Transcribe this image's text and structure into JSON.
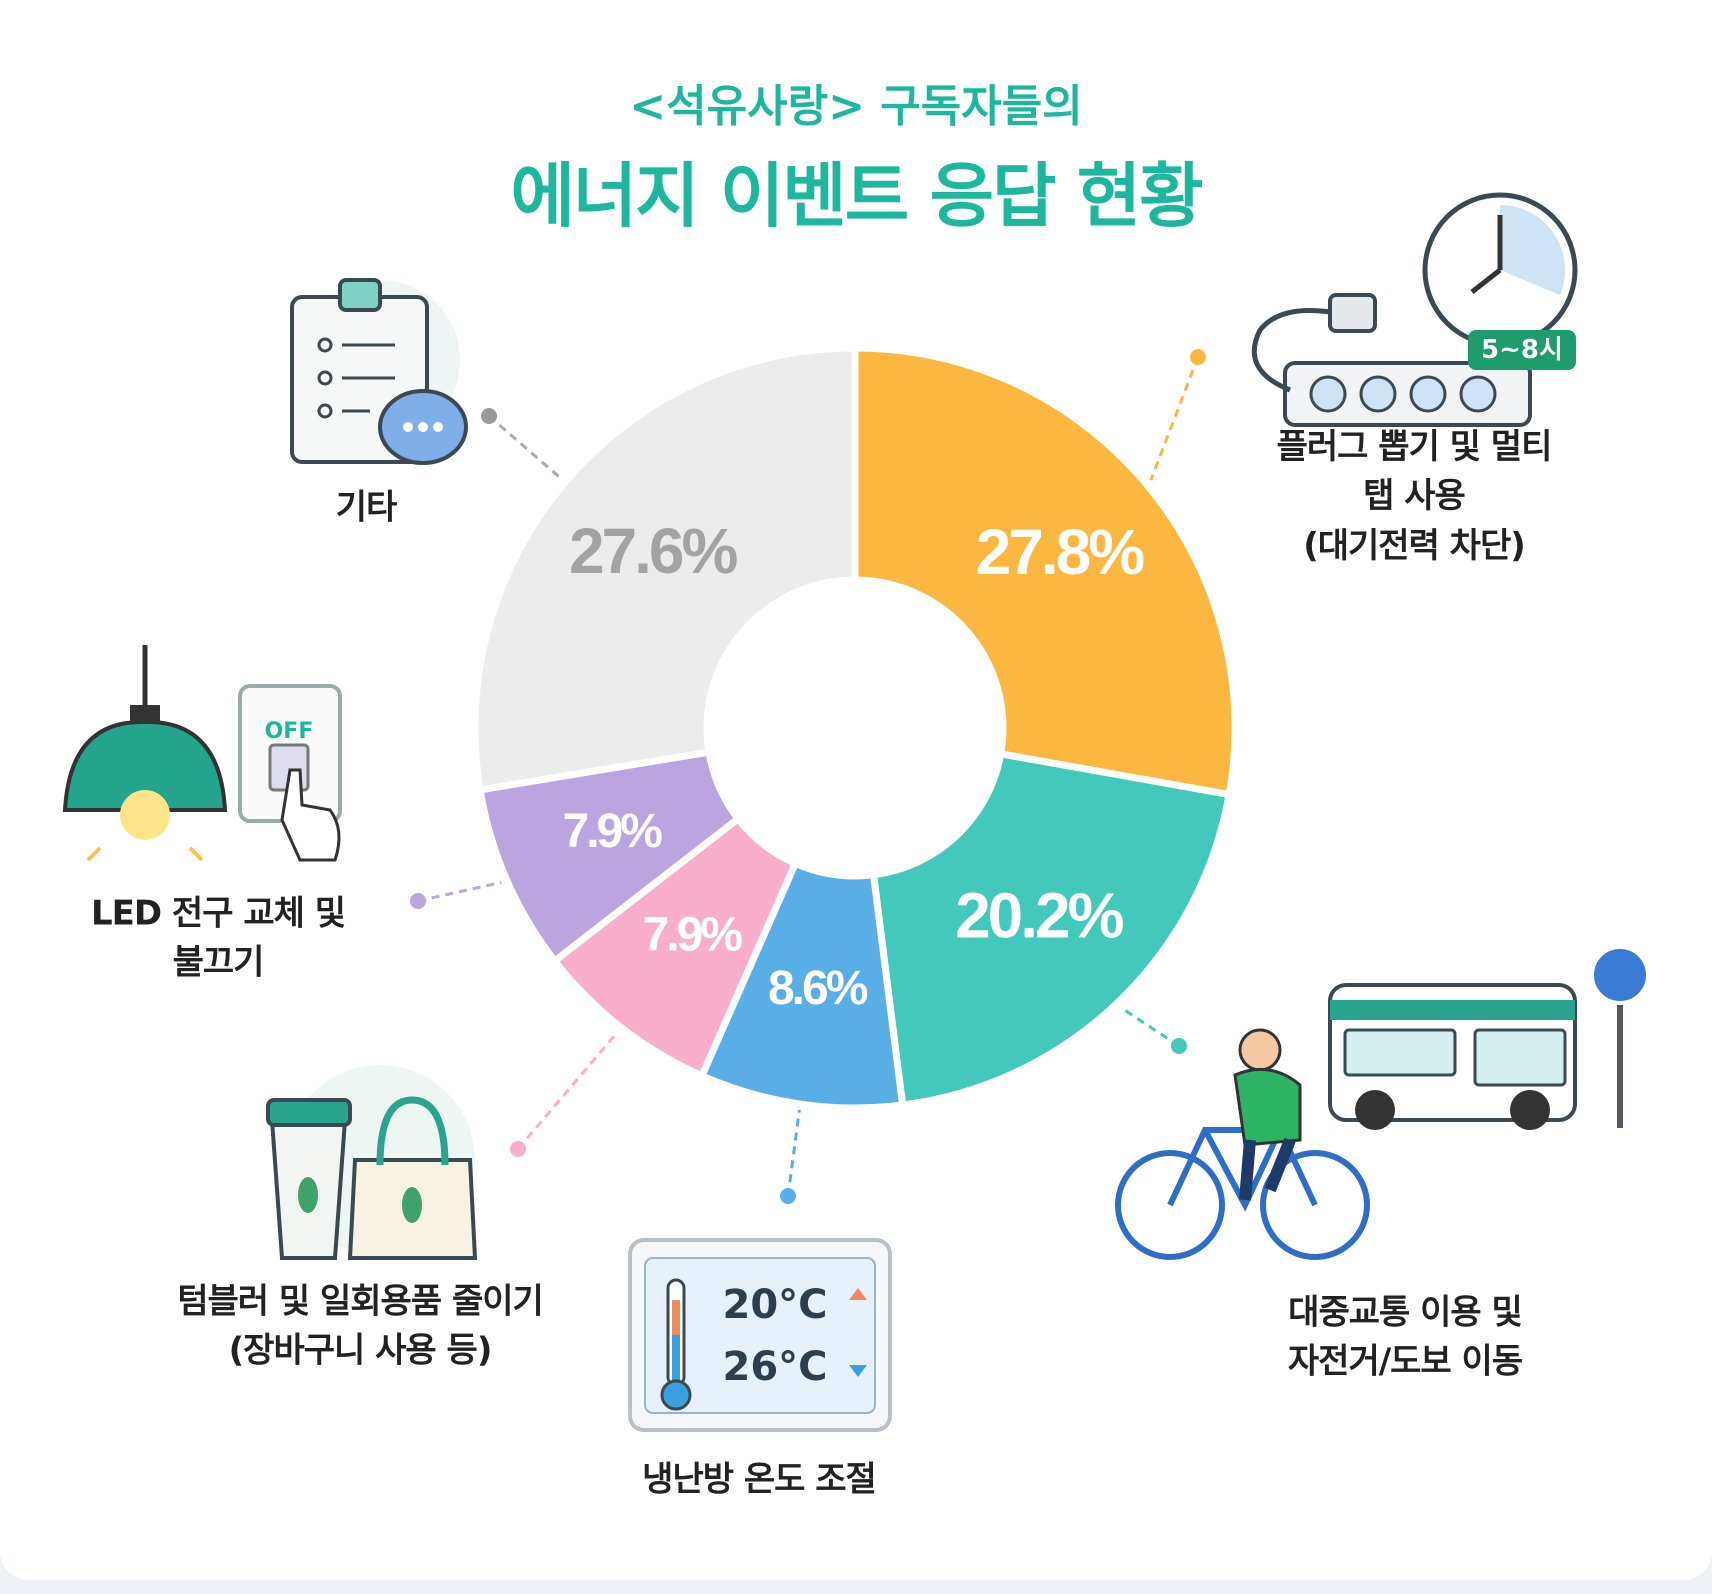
{
  "chart_data": {
    "type": "pie",
    "supertitle": "<석유사랑> 구독자들의",
    "title": "에너지 이벤트 응답 현황",
    "categories": [
      "플러그 뽑기 및 멀티탭 사용\n(대기전력 차단)",
      "대중교통 이용 및\n자전거/도보 이동",
      "냉난방 온도 조절",
      "텀블러 및 일회용품 줄이기\n(장바구니 사용 등)",
      "LED 전구 교체 및\n불끄기",
      "기타"
    ],
    "values": [
      27.8,
      20.2,
      8.6,
      7.9,
      7.9,
      27.6
    ],
    "value_labels": [
      "27.8%",
      "20.2%",
      "8.6%",
      "7.9%",
      "7.9%",
      "27.6%"
    ],
    "colors": [
      "#fbb740",
      "#43c8bc",
      "#5aaee6",
      "#f9aecb",
      "#bba5de",
      "#ececec"
    ],
    "label_colors": [
      "#ffffff",
      "#ffffff",
      "#ffffff",
      "#ffffff",
      "#ffffff",
      "#a3a3a3"
    ],
    "icon_texts": [
      "5~8시",
      "OFF",
      "20°C",
      "26°C"
    ]
  }
}
